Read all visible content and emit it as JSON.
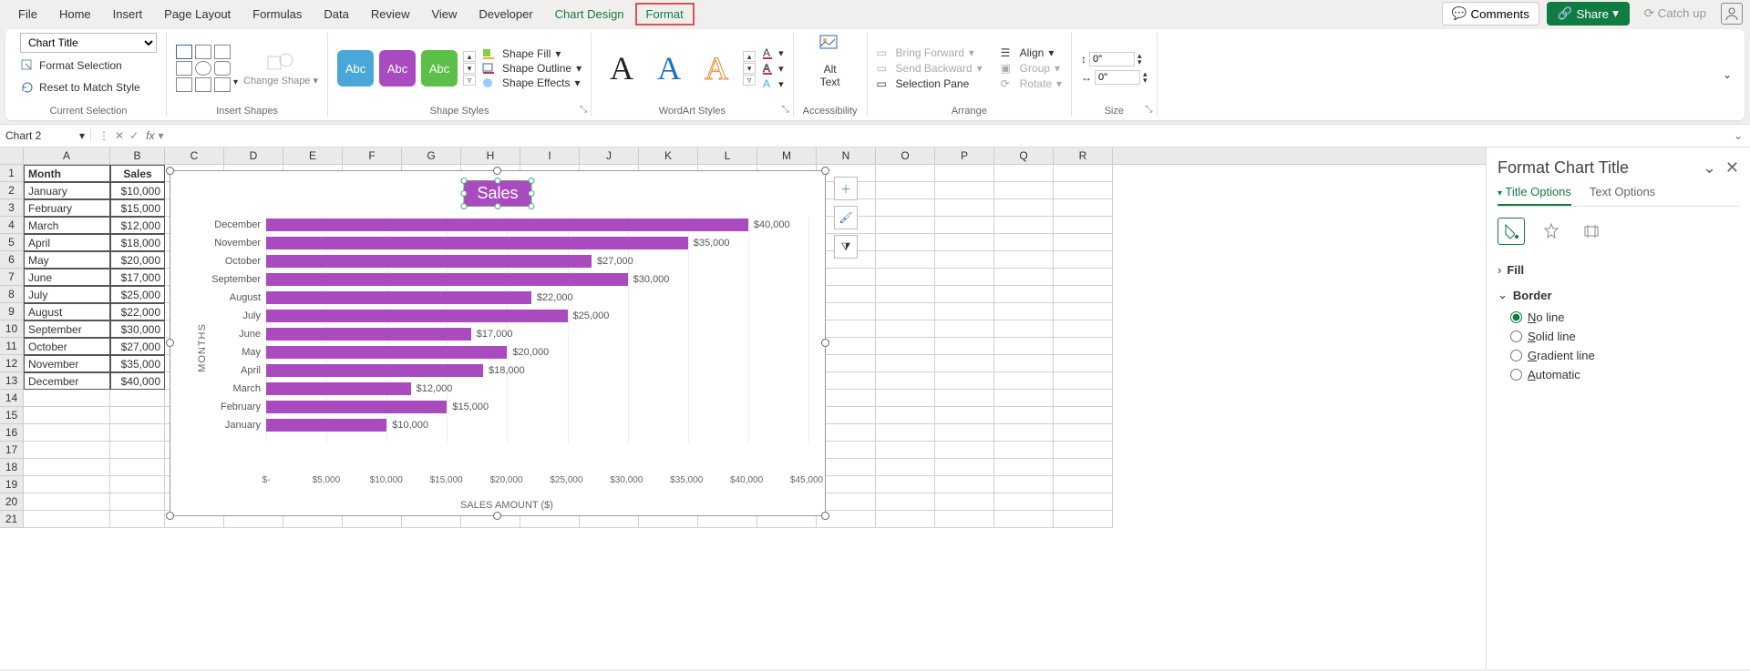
{
  "menu": {
    "tabs": [
      "File",
      "Home",
      "Insert",
      "Page Layout",
      "Formulas",
      "Data",
      "Review",
      "View",
      "Developer",
      "Chart Design",
      "Format"
    ],
    "active": "Format",
    "comments": "Comments",
    "share": "Share",
    "catchup": "Catch up"
  },
  "ribbon": {
    "currentSelection": {
      "dropdown": "Chart Title",
      "formatSelection": "Format Selection",
      "resetMatch": "Reset to Match Style",
      "label": "Current Selection"
    },
    "insertShapes": {
      "changeShape": "Change Shape",
      "label": "Insert Shapes"
    },
    "shapeStyles": {
      "abc": "Abc",
      "shapeFill": "Shape Fill",
      "shapeOutline": "Shape Outline",
      "shapeEffects": "Shape Effects",
      "label": "Shape Styles"
    },
    "wordart": {
      "label": "WordArt Styles"
    },
    "accessibility": {
      "altText": "Alt Text",
      "label": "Accessibility"
    },
    "arrange": {
      "bringForward": "Bring Forward",
      "sendBackward": "Send Backward",
      "selectionPane": "Selection Pane",
      "align": "Align",
      "group": "Group",
      "rotate": "Rotate",
      "label": "Arrange"
    },
    "size": {
      "h": "0\"",
      "w": "0\"",
      "label": "Size"
    }
  },
  "formulaBar": {
    "name": "Chart 2",
    "fx": "fx"
  },
  "sheet": {
    "cols": [
      "A",
      "B",
      "C",
      "D",
      "E",
      "F",
      "G",
      "H",
      "I",
      "J",
      "K",
      "L",
      "M",
      "N",
      "O",
      "P",
      "Q",
      "R"
    ],
    "header": [
      "Month",
      "Sales"
    ],
    "rows": [
      [
        "January",
        "$10,000"
      ],
      [
        "February",
        "$15,000"
      ],
      [
        "March",
        "$12,000"
      ],
      [
        "April",
        "$18,000"
      ],
      [
        "May",
        "$20,000"
      ],
      [
        "June",
        "$17,000"
      ],
      [
        "July",
        "$25,000"
      ],
      [
        "August",
        "$22,000"
      ],
      [
        "September",
        "$30,000"
      ],
      [
        "October",
        "$27,000"
      ],
      [
        "November",
        "$35,000"
      ],
      [
        "December",
        "$40,000"
      ]
    ],
    "emptyRows": [
      14,
      15,
      16,
      17,
      18,
      19,
      20,
      21
    ]
  },
  "chart": {
    "type": "bar-horizontal",
    "title": "Sales",
    "title_bg": "#a94bbf",
    "bar_color": "#a94bbf",
    "y_title": "MONTHS",
    "x_title": "SALES AMOUNT ($)",
    "x_ticks": [
      "$-",
      "$5,000",
      "$10,000",
      "$15,000",
      "$20,000",
      "$25,000",
      "$30,000",
      "$35,000",
      "$40,000",
      "$45,000"
    ],
    "x_max": 45000,
    "bars": [
      {
        "label": "December",
        "val": 40000,
        "text": "$40,000"
      },
      {
        "label": "November",
        "val": 35000,
        "text": "$35,000"
      },
      {
        "label": "October",
        "val": 27000,
        "text": "$27,000"
      },
      {
        "label": "September",
        "val": 30000,
        "text": "$30,000"
      },
      {
        "label": "August",
        "val": 22000,
        "text": "$22,000"
      },
      {
        "label": "July",
        "val": 25000,
        "text": "$25,000"
      },
      {
        "label": "June",
        "val": 17000,
        "text": "$17,000"
      },
      {
        "label": "May",
        "val": 20000,
        "text": "$20,000"
      },
      {
        "label": "April",
        "val": 18000,
        "text": "$18,000"
      },
      {
        "label": "March",
        "val": 12000,
        "text": "$12,000"
      },
      {
        "label": "February",
        "val": 15000,
        "text": "$15,000"
      },
      {
        "label": "January",
        "val": 10000,
        "text": "$10,000"
      }
    ]
  },
  "pane": {
    "title": "Format Chart Title",
    "tabs": [
      "Title Options",
      "Text Options"
    ],
    "fill": "Fill",
    "border": "Border",
    "radios": {
      "noline": "o line",
      "solid": "olid line",
      "gradient": "radient line",
      "auto": "utomatic"
    },
    "prefix": {
      "noline": "N",
      "solid": "S",
      "gradient": "G",
      "auto": "A"
    }
  }
}
